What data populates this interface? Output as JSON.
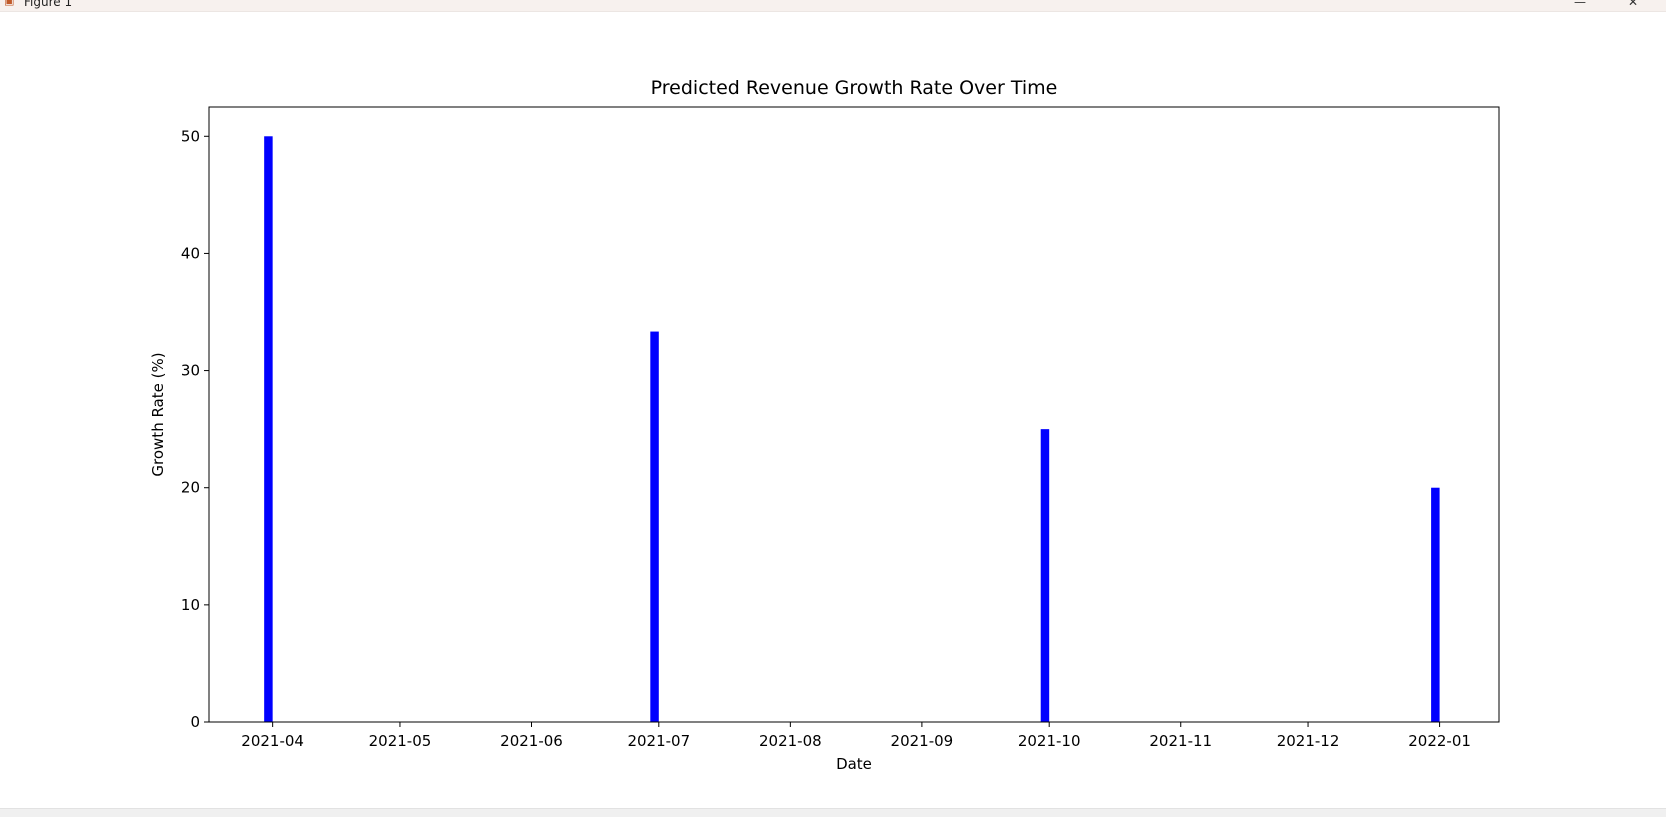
{
  "window": {
    "title": "Figure 1",
    "icon": "figure-app-icon",
    "controls": [
      "minimize-icon",
      "maximize-icon",
      "close-icon"
    ]
  },
  "chart_data": {
    "type": "bar",
    "title": "Predicted Revenue Growth Rate Over Time",
    "xlabel": "Date",
    "ylabel": "Growth Rate (%)",
    "x": [
      "2021-03-31",
      "2021-06-30",
      "2021-09-30",
      "2021-12-31"
    ],
    "values": [
      50.0,
      33.33,
      25.0,
      20.0
    ],
    "bar_color": "#0000ff",
    "xlim": [
      "2021-03-17",
      "2022-01-15"
    ],
    "ylim": [
      0,
      52.5
    ],
    "xticks": [
      "2021-04",
      "2021-05",
      "2021-06",
      "2021-07",
      "2021-08",
      "2021-09",
      "2021-10",
      "2021-11",
      "2021-12",
      "2022-01"
    ],
    "yticks": [
      0,
      10,
      20,
      30,
      40,
      50
    ],
    "grid": false,
    "legend": "none"
  }
}
